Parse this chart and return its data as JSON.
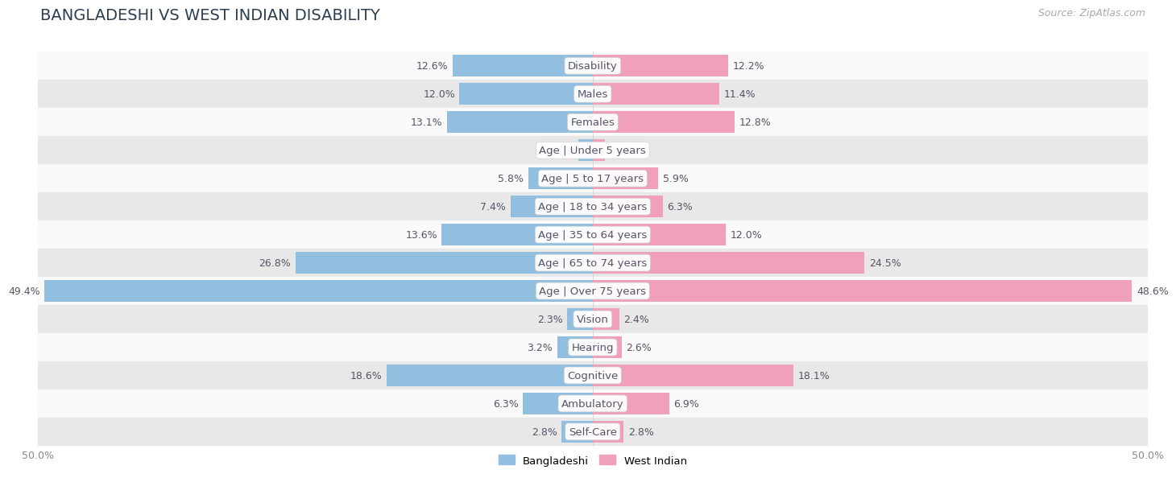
{
  "title": "BANGLADESHI VS WEST INDIAN DISABILITY",
  "source": "Source: ZipAtlas.com",
  "categories": [
    "Disability",
    "Males",
    "Females",
    "Age | Under 5 years",
    "Age | 5 to 17 years",
    "Age | 18 to 34 years",
    "Age | 35 to 64 years",
    "Age | 65 to 74 years",
    "Age | Over 75 years",
    "Vision",
    "Hearing",
    "Cognitive",
    "Ambulatory",
    "Self-Care"
  ],
  "bangladeshi": [
    12.6,
    12.0,
    13.1,
    1.3,
    5.8,
    7.4,
    13.6,
    26.8,
    49.4,
    2.3,
    3.2,
    18.6,
    6.3,
    2.8
  ],
  "west_indian": [
    12.2,
    11.4,
    12.8,
    1.1,
    5.9,
    6.3,
    12.0,
    24.5,
    48.6,
    2.4,
    2.6,
    18.1,
    6.9,
    2.8
  ],
  "max_val": 50.0,
  "blue_color": "#92bfe0",
  "pink_color": "#f0a0bb",
  "bg_color": "#f0f0f0",
  "row_bg_light": "#fafafa",
  "row_bg_dark": "#e8e8e8",
  "bar_height": 0.78,
  "title_fontsize": 14,
  "label_fontsize": 9.5,
  "value_fontsize": 9,
  "tick_fontsize": 9,
  "source_fontsize": 9
}
